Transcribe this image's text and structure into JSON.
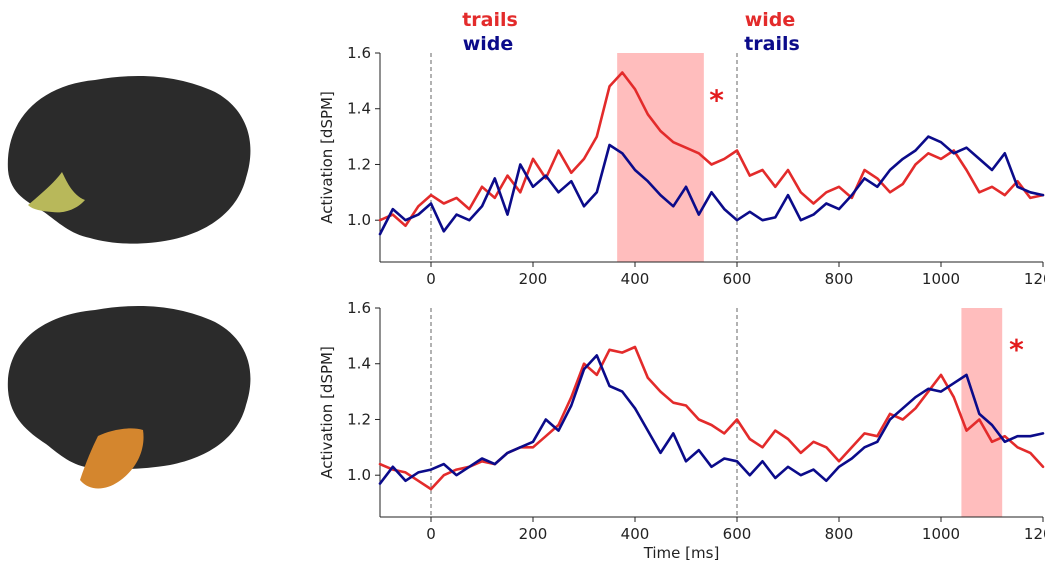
{
  "colors": {
    "red": "#e32b2b",
    "blue": "#0b0b8a",
    "shade": "#ff9a9a",
    "brain": "#2b2b2b",
    "roi_top": "#b8b85a",
    "roi_bottom": "#d4862e"
  },
  "condition_labels": {
    "left": {
      "top": "trails",
      "top_color": "red",
      "bottom": "wide",
      "bottom_color": "blue"
    },
    "right": {
      "top": "wide",
      "top_color": "red",
      "bottom": "trails",
      "bottom_color": "blue"
    }
  },
  "brains": [
    {
      "roi_color": "roi_top"
    },
    {
      "roi_color": "roi_bottom"
    }
  ],
  "chart_data": [
    {
      "type": "line",
      "ylabel": "Activation [dSPM]",
      "xlabel": "",
      "xlim": [
        -100,
        1200
      ],
      "ylim": [
        0.85,
        1.6
      ],
      "xticks": [
        0,
        200,
        400,
        600,
        800,
        1000,
        1200
      ],
      "yticks": [
        "1.0",
        "1.2",
        "1.4",
        "1.6"
      ],
      "vlines": [
        0,
        600
      ],
      "shaded": [
        365,
        535
      ],
      "significance": {
        "x": 560,
        "y": 1.44,
        "label": "*"
      },
      "x": [
        -100,
        -75,
        -50,
        -25,
        0,
        25,
        50,
        75,
        100,
        125,
        150,
        175,
        200,
        225,
        250,
        275,
        300,
        325,
        350,
        375,
        400,
        425,
        450,
        475,
        500,
        525,
        550,
        575,
        600,
        625,
        650,
        675,
        700,
        725,
        750,
        775,
        800,
        825,
        850,
        875,
        900,
        925,
        950,
        975,
        1000,
        1025,
        1050,
        1075,
        1100,
        1125,
        1150,
        1175,
        1200
      ],
      "series": [
        {
          "color": "red",
          "values": [
            1.0,
            1.02,
            0.98,
            1.05,
            1.09,
            1.06,
            1.08,
            1.04,
            1.12,
            1.08,
            1.16,
            1.1,
            1.22,
            1.15,
            1.25,
            1.17,
            1.22,
            1.3,
            1.48,
            1.53,
            1.47,
            1.38,
            1.32,
            1.28,
            1.26,
            1.24,
            1.2,
            1.22,
            1.25,
            1.16,
            1.18,
            1.12,
            1.18,
            1.1,
            1.06,
            1.1,
            1.12,
            1.08,
            1.18,
            1.15,
            1.1,
            1.13,
            1.2,
            1.24,
            1.22,
            1.25,
            1.18,
            1.1,
            1.12,
            1.09,
            1.14,
            1.08,
            1.09
          ]
        },
        {
          "color": "blue",
          "values": [
            0.95,
            1.04,
            1.0,
            1.02,
            1.06,
            0.96,
            1.02,
            1.0,
            1.05,
            1.15,
            1.02,
            1.2,
            1.12,
            1.16,
            1.1,
            1.14,
            1.05,
            1.1,
            1.27,
            1.24,
            1.18,
            1.14,
            1.09,
            1.05,
            1.12,
            1.02,
            1.1,
            1.04,
            1.0,
            1.03,
            1.0,
            1.01,
            1.09,
            1.0,
            1.02,
            1.06,
            1.04,
            1.09,
            1.15,
            1.12,
            1.18,
            1.22,
            1.25,
            1.3,
            1.28,
            1.24,
            1.26,
            1.22,
            1.18,
            1.24,
            1.12,
            1.1,
            1.09
          ]
        }
      ]
    },
    {
      "type": "line",
      "ylabel": "Activation [dSPM]",
      "xlabel": "Time [ms]",
      "xlim": [
        -100,
        1200
      ],
      "ylim": [
        0.85,
        1.6
      ],
      "xticks": [
        0,
        200,
        400,
        600,
        800,
        1000,
        1200
      ],
      "yticks": [
        "1.0",
        "1.2",
        "1.4",
        "1.6"
      ],
      "vlines": [
        0,
        600
      ],
      "shaded": [
        1040,
        1120
      ],
      "significance": {
        "x": 1148,
        "y": 1.46,
        "label": "*"
      },
      "x": [
        -100,
        -75,
        -50,
        -25,
        0,
        25,
        50,
        75,
        100,
        125,
        150,
        175,
        200,
        225,
        250,
        275,
        300,
        325,
        350,
        375,
        400,
        425,
        450,
        475,
        500,
        525,
        550,
        575,
        600,
        625,
        650,
        675,
        700,
        725,
        750,
        775,
        800,
        825,
        850,
        875,
        900,
        925,
        950,
        975,
        1000,
        1025,
        1050,
        1075,
        1100,
        1125,
        1150,
        1175,
        1200
      ],
      "series": [
        {
          "color": "red",
          "values": [
            1.04,
            1.02,
            1.01,
            0.98,
            0.95,
            1.0,
            1.02,
            1.03,
            1.05,
            1.04,
            1.08,
            1.1,
            1.1,
            1.14,
            1.18,
            1.28,
            1.4,
            1.36,
            1.45,
            1.44,
            1.46,
            1.35,
            1.3,
            1.26,
            1.25,
            1.2,
            1.18,
            1.15,
            1.2,
            1.13,
            1.1,
            1.16,
            1.13,
            1.08,
            1.12,
            1.1,
            1.05,
            1.1,
            1.15,
            1.14,
            1.22,
            1.2,
            1.24,
            1.3,
            1.36,
            1.28,
            1.16,
            1.2,
            1.12,
            1.14,
            1.1,
            1.08,
            1.03
          ]
        },
        {
          "color": "blue",
          "values": [
            0.97,
            1.03,
            0.98,
            1.01,
            1.02,
            1.04,
            1.0,
            1.03,
            1.06,
            1.04,
            1.08,
            1.1,
            1.12,
            1.2,
            1.16,
            1.25,
            1.38,
            1.43,
            1.32,
            1.3,
            1.24,
            1.16,
            1.08,
            1.15,
            1.05,
            1.09,
            1.03,
            1.06,
            1.05,
            1.0,
            1.05,
            0.99,
            1.03,
            1.0,
            1.02,
            0.98,
            1.03,
            1.06,
            1.1,
            1.12,
            1.2,
            1.24,
            1.28,
            1.31,
            1.3,
            1.33,
            1.36,
            1.22,
            1.18,
            1.12,
            1.14,
            1.14,
            1.15
          ]
        }
      ]
    }
  ]
}
